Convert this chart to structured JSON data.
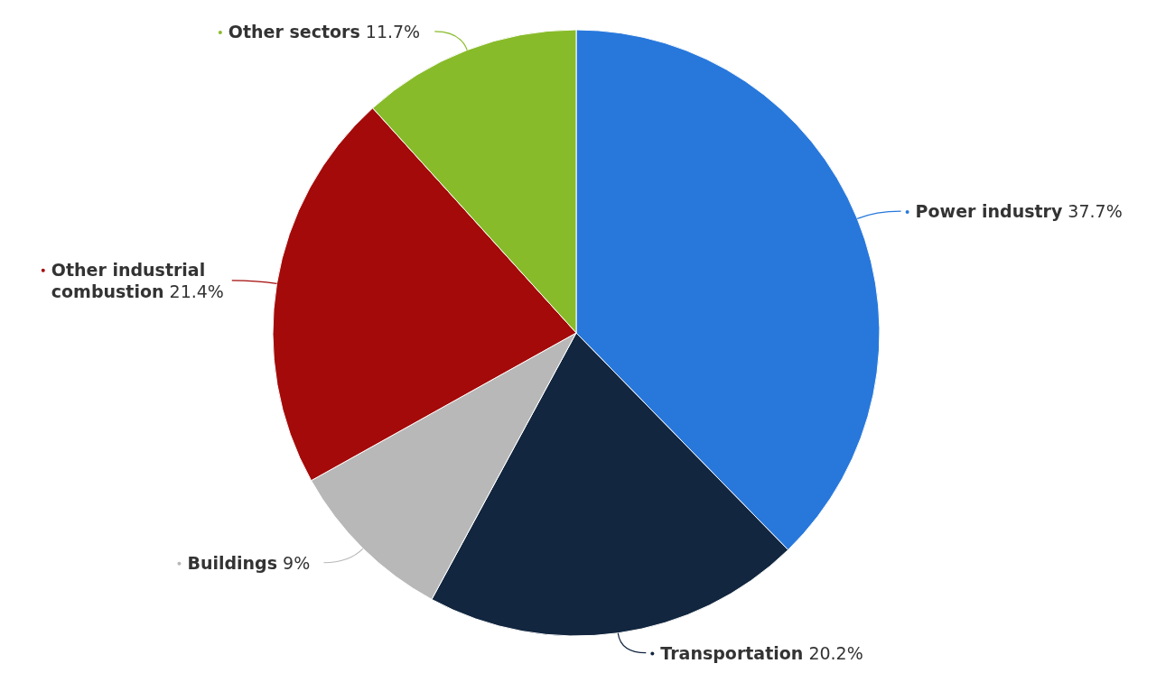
{
  "chart_data": {
    "type": "pie",
    "categories": [
      "Power industry",
      "Transportation",
      "Buildings",
      "Other industrial combustion",
      "Other sectors"
    ],
    "values": [
      37.7,
      20.2,
      9,
      21.4,
      11.7
    ],
    "colors": [
      "#2878dc",
      "#12263f",
      "#b8b8b8",
      "#a40a0a",
      "#88bb2a"
    ],
    "value_labels": [
      "37.7%",
      "20.2%",
      "9%",
      "21.4%",
      "11.7%"
    ]
  }
}
